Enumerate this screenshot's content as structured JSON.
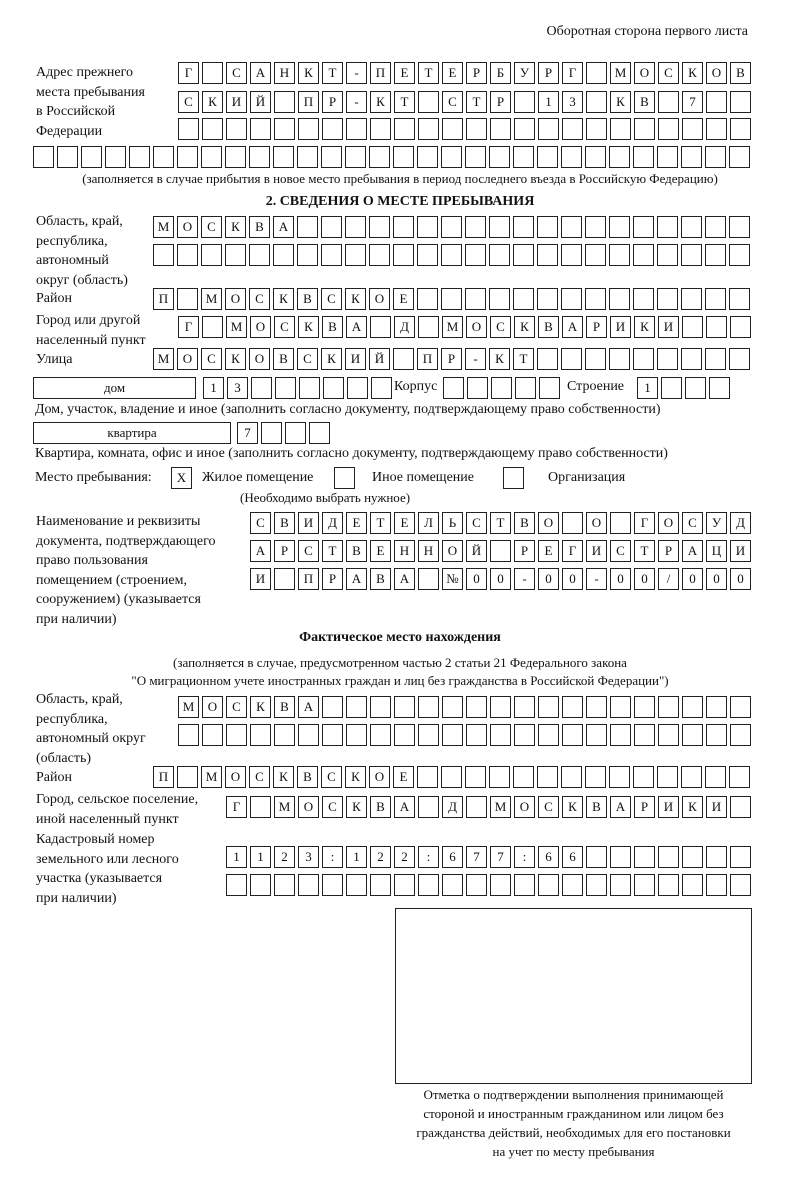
{
  "header": {
    "page_side": "Оборотная сторона первого листа"
  },
  "previous_address": {
    "label": "Адрес прежнего\nместа пребывания\nв Российской\nФедерации",
    "rows": [
      [
        "Г",
        "",
        "С",
        "А",
        "Н",
        "К",
        "Т",
        "-",
        "П",
        "Е",
        "Т",
        "Е",
        "Р",
        "Б",
        "У",
        "Р",
        "Г",
        "",
        "М",
        "О",
        "С",
        "К",
        "О",
        "В"
      ],
      [
        "С",
        "К",
        "И",
        "Й",
        "",
        "П",
        "Р",
        "-",
        "К",
        "Т",
        "",
        "С",
        "Т",
        "Р",
        "",
        "1",
        "3",
        "",
        "К",
        "В",
        "",
        "7",
        "",
        ""
      ],
      [
        "",
        "",
        "",
        "",
        "",
        "",
        "",
        "",
        "",
        "",
        "",
        "",
        "",
        "",
        "",
        "",
        "",
        "",
        "",
        "",
        "",
        "",
        "",
        ""
      ],
      [
        "",
        "",
        "",
        "",
        "",
        "",
        "",
        "",
        "",
        "",
        "",
        "",
        "",
        "",
        "",
        "",
        "",
        "",
        "",
        "",
        "",
        "",
        "",
        "",
        "",
        "",
        "",
        "",
        "",
        ""
      ]
    ],
    "note": "(заполняется в случае прибытия в новое место пребывания в период последнего въезда в Российскую Федерацию)"
  },
  "stay_place": {
    "title": "2. СВЕДЕНИЯ О МЕСТЕ ПРЕБЫВАНИЯ",
    "region_label": "Область, край,\nреспублика,\nавтономный\nокруг (область)",
    "region_rows": [
      [
        "М",
        "О",
        "С",
        "К",
        "В",
        "А",
        "",
        "",
        "",
        "",
        "",
        "",
        "",
        "",
        "",
        "",
        "",
        "",
        "",
        "",
        "",
        "",
        "",
        "",
        ""
      ],
      [
        "",
        "",
        "",
        "",
        "",
        "",
        "",
        "",
        "",
        "",
        "",
        "",
        "",
        "",
        "",
        "",
        "",
        "",
        "",
        "",
        "",
        "",
        "",
        "",
        ""
      ]
    ],
    "district_label": "Район",
    "district_row": [
      "П",
      "",
      "М",
      "О",
      "С",
      "К",
      "В",
      "С",
      "К",
      "О",
      "Е",
      "",
      "",
      "",
      "",
      "",
      "",
      "",
      "",
      "",
      "",
      "",
      "",
      "",
      ""
    ],
    "city_label": "Город или другой\nнаселенный пункт",
    "city_row": [
      "Г",
      "",
      "М",
      "О",
      "С",
      "К",
      "В",
      "А",
      "",
      "Д",
      "",
      "М",
      "О",
      "С",
      "К",
      "В",
      "А",
      "Р",
      "И",
      "К",
      "И",
      "",
      "",
      ""
    ],
    "street_label": "Улица",
    "street_row": [
      "М",
      "О",
      "С",
      "К",
      "О",
      "В",
      "С",
      "К",
      "И",
      "Й",
      "",
      "П",
      "Р",
      "-",
      "К",
      "Т",
      "",
      "",
      "",
      "",
      "",
      "",
      "",
      "",
      ""
    ],
    "house_type": "дом",
    "house_cells": [
      "1",
      "3",
      "",
      "",
      "",
      "",
      "",
      ""
    ],
    "korpus_label": "Корпус",
    "korpus_cells": [
      "",
      "",
      "",
      "",
      ""
    ],
    "building_label": "Строение",
    "building_cells": [
      "1",
      "",
      "",
      ""
    ],
    "house_note": "Дом, участок, владение и иное (заполнить согласно документу, подтверждающему право собственности)",
    "flat_type": "квартира",
    "flat_cells": [
      "7",
      "",
      "",
      ""
    ],
    "flat_note": "Квартира, комната, офис и иное (заполнить согласно документу, подтверждающему право собственности)",
    "place_label": "Место пребывания:",
    "options": [
      {
        "label": "Жилое помещение",
        "mark": "X"
      },
      {
        "label": "Иное помещение",
        "mark": ""
      },
      {
        "label": "Организация",
        "mark": ""
      }
    ],
    "options_note": "(Необходимо выбрать нужное)",
    "doc_label": "Наименование и реквизиты\nдокумента, подтверждающего\nправо пользования\nпомещением (строением,\nсооружением) (указывается\nпри наличии)",
    "doc_rows": [
      [
        "С",
        "В",
        "И",
        "Д",
        "Е",
        "Т",
        "Е",
        "Л",
        "Ь",
        "С",
        "Т",
        "В",
        "О",
        "",
        "О",
        "",
        "Г",
        "О",
        "С",
        "У",
        "Д"
      ],
      [
        "А",
        "Р",
        "С",
        "Т",
        "В",
        "Е",
        "Н",
        "Н",
        "О",
        "Й",
        "",
        "Р",
        "Е",
        "Г",
        "И",
        "С",
        "Т",
        "Р",
        "А",
        "Ц",
        "И"
      ],
      [
        "И",
        "",
        "П",
        "Р",
        "А",
        "В",
        "А",
        "",
        "№",
        "0",
        "0",
        "-",
        "0",
        "0",
        "-",
        "0",
        "0",
        "/",
        "0",
        "0",
        "0"
      ]
    ]
  },
  "actual_place": {
    "title": "Фактическое место нахождения",
    "subtitle1": "(заполняется в случае, предусмотренном частью 2 статьи 21 Федерального закона",
    "subtitle2": "\"О миграционном учете иностранных граждан и лиц без гражданства в Российской Федерации\")",
    "region_label": "Область, край,\nреспублика,\nавтономный округ\n(область)",
    "region_rows": [
      [
        "М",
        "О",
        "С",
        "К",
        "В",
        "А",
        "",
        "",
        "",
        "",
        "",
        "",
        "",
        "",
        "",
        "",
        "",
        "",
        "",
        "",
        "",
        "",
        "",
        ""
      ],
      [
        "",
        "",
        "",
        "",
        "",
        "",
        "",
        "",
        "",
        "",
        "",
        "",
        "",
        "",
        "",
        "",
        "",
        "",
        "",
        "",
        "",
        "",
        "",
        ""
      ]
    ],
    "district_label": "Район",
    "district_row": [
      "П",
      "",
      "М",
      "О",
      "С",
      "К",
      "В",
      "С",
      "К",
      "О",
      "Е",
      "",
      "",
      "",
      "",
      "",
      "",
      "",
      "",
      "",
      "",
      "",
      "",
      "",
      ""
    ],
    "city_label": "Город, сельское поселение,\nиной населенный пункт",
    "city_row": [
      "Г",
      "",
      "М",
      "О",
      "С",
      "К",
      "В",
      "А",
      "",
      "Д",
      "",
      "М",
      "О",
      "С",
      "К",
      "В",
      "А",
      "Р",
      "И",
      "К",
      "И",
      ""
    ],
    "cadastral_label": "Кадастровый номер\nземельного или лесного\nучастка (указывается\nпри наличии)",
    "cadastral_rows": [
      [
        "1",
        "1",
        "2",
        "3",
        ":",
        "1",
        "2",
        "2",
        ":",
        "6",
        "7",
        "7",
        ":",
        "6",
        "6",
        "",
        "",
        "",
        "",
        "",
        "",
        ""
      ],
      [
        "",
        "",
        "",
        "",
        "",
        "",
        "",
        "",
        "",
        "",
        "",
        "",
        "",
        "",
        "",
        "",
        "",
        "",
        "",
        "",
        "",
        ""
      ]
    ]
  },
  "confirmation_caption": "Отметка о подтверждении выполнения принимающей\nстороной и иностранным гражданином или лицом без\nгражданства действий, необходимых для его постановки\nна учет по месту пребывания"
}
